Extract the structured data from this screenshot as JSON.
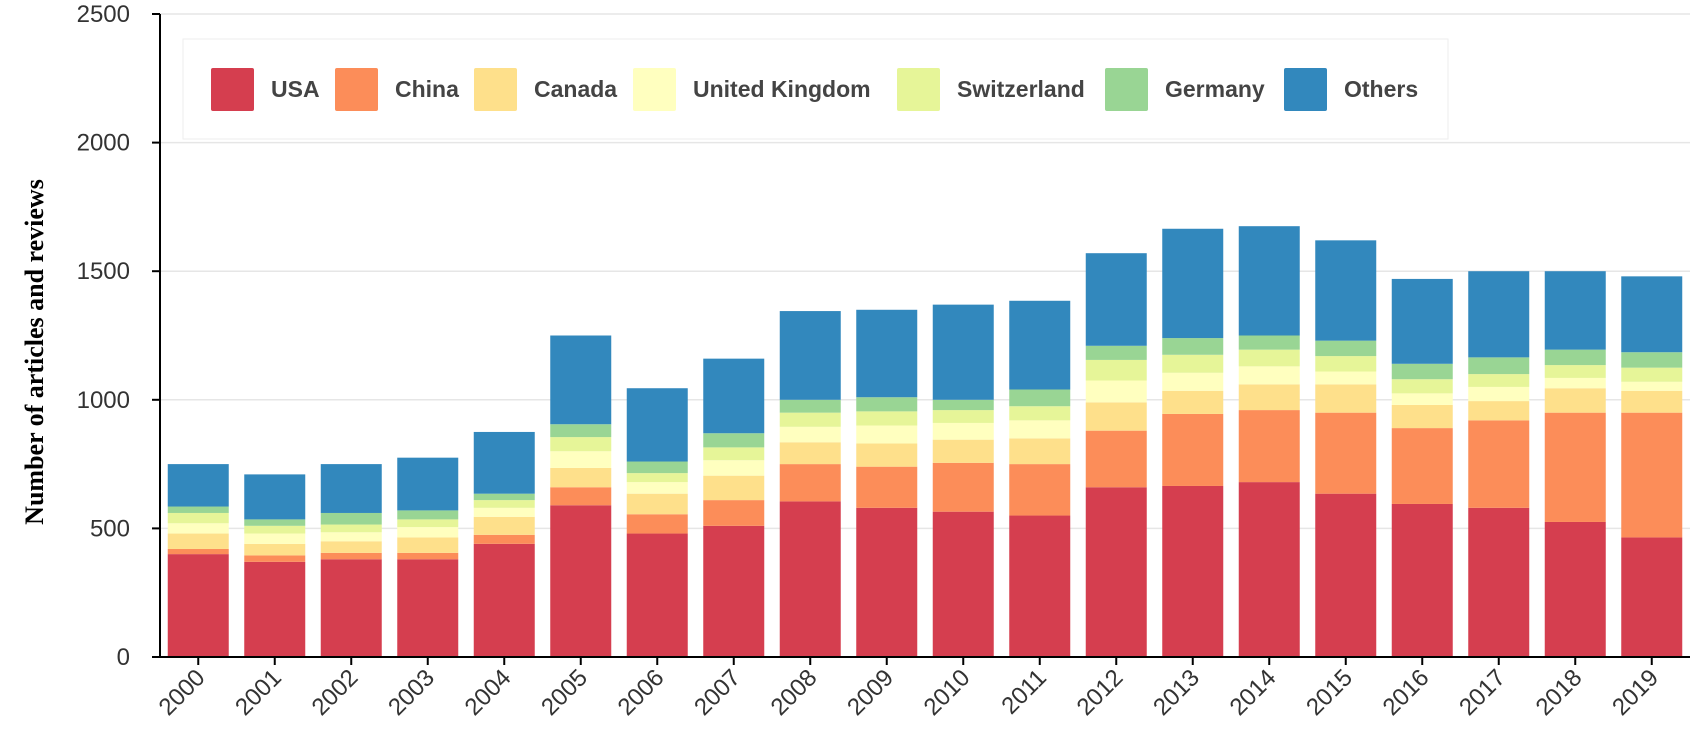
{
  "chart_data": {
    "type": "bar",
    "stacked": true,
    "title": "",
    "xlabel": "",
    "ylabel": "Number of articles and reviews",
    "ylim": [
      0,
      2500
    ],
    "yticks": [
      "0",
      "500",
      "1000",
      "1500",
      "2000",
      "2500"
    ],
    "grid": true,
    "legend_position": "top",
    "categories": [
      "2000",
      "2001",
      "2002",
      "2003",
      "2004",
      "2005",
      "2006",
      "2007",
      "2008",
      "2009",
      "2010",
      "2011",
      "2012",
      "2013",
      "2014",
      "2015",
      "2016",
      "2017",
      "2018",
      "2019"
    ],
    "series": [
      {
        "name": "USA",
        "color": "#d53e4f",
        "values": [
          400,
          370,
          380,
          380,
          440,
          590,
          480,
          510,
          605,
          580,
          565,
          550,
          660,
          665,
          680,
          635,
          595,
          580,
          525,
          465
        ]
      },
      {
        "name": "China",
        "color": "#fc8d59",
        "values": [
          20,
          25,
          25,
          25,
          35,
          70,
          75,
          100,
          145,
          160,
          190,
          200,
          220,
          280,
          280,
          315,
          295,
          340,
          425,
          485
        ]
      },
      {
        "name": "Canada",
        "color": "#fee08b",
        "values": [
          60,
          45,
          45,
          60,
          70,
          75,
          80,
          95,
          85,
          90,
          90,
          100,
          110,
          90,
          100,
          110,
          90,
          75,
          95,
          85
        ]
      },
      {
        "name": "United Kingdom",
        "color": "#ffffbf",
        "values": [
          40,
          40,
          35,
          40,
          35,
          65,
          45,
          60,
          60,
          70,
          65,
          70,
          85,
          70,
          70,
          50,
          45,
          55,
          40,
          35
        ]
      },
      {
        "name": "Switzerland",
        "color": "#e6f598",
        "values": [
          40,
          30,
          30,
          30,
          30,
          55,
          35,
          50,
          55,
          55,
          50,
          55,
          80,
          70,
          65,
          60,
          55,
          50,
          50,
          55
        ]
      },
      {
        "name": "Germany",
        "color": "#99d594",
        "values": [
          25,
          25,
          45,
          35,
          25,
          50,
          45,
          55,
          50,
          55,
          40,
          65,
          55,
          65,
          55,
          60,
          60,
          65,
          60,
          60
        ]
      },
      {
        "name": "Others",
        "color": "#3288bd",
        "values": [
          165,
          175,
          190,
          205,
          240,
          345,
          285,
          290,
          345,
          340,
          370,
          345,
          360,
          425,
          425,
          390,
          330,
          335,
          305,
          295
        ]
      }
    ]
  }
}
